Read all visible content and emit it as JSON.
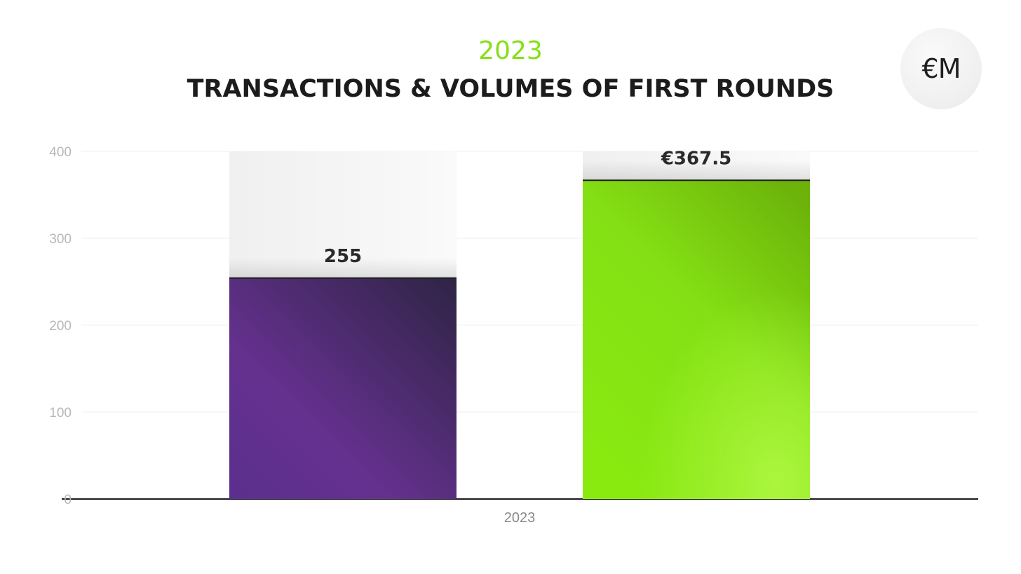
{
  "header": {
    "year": "2023",
    "title": "TRANSACTIONS & VOLUMES OF FIRST ROUNDS"
  },
  "logo": {
    "text": "€M"
  },
  "colors": {
    "accent_green": "#84e014",
    "purple_dark": "#33254a",
    "purple_light": "#6a2f95",
    "green_dark": "#6db40a",
    "green_light": "#a6f43a"
  },
  "chart_data": {
    "type": "bar",
    "categories": [
      "2023"
    ],
    "series": [
      {
        "values": [
          255
        ],
        "label": "255",
        "color": "purple"
      },
      {
        "values": [
          367.5
        ],
        "label": "€367.5",
        "color": "green"
      }
    ],
    "yticks": [
      "0",
      "100",
      "200",
      "300",
      "400"
    ],
    "ylim": [
      0,
      400
    ],
    "grid": true,
    "legend": "none"
  }
}
